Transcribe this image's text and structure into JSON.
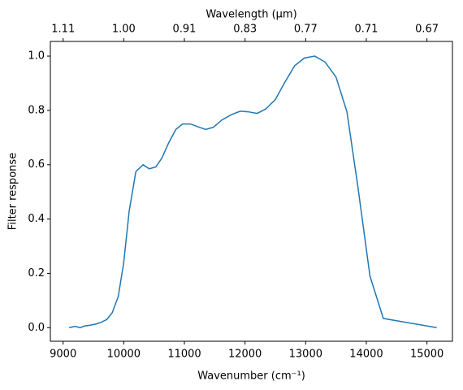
{
  "chart_data": {
    "type": "line",
    "x_label": "Wavenumber (cm⁻¹)",
    "y_label": "Filter response",
    "x2_label": "Wavelength (μm)",
    "x": [
      9100,
      9200,
      9280,
      9350,
      9450,
      9550,
      9630,
      9720,
      9810,
      9910,
      10000,
      10090,
      10200,
      10320,
      10420,
      10530,
      10630,
      10740,
      10860,
      10970,
      11100,
      11220,
      11350,
      11480,
      11620,
      11780,
      11920,
      12050,
      12200,
      12340,
      12500,
      12660,
      12820,
      12980,
      13150,
      13320,
      13500,
      13680,
      13860,
      14060,
      14280,
      15160
    ],
    "series": [
      {
        "color": "#1f77b4",
        "values": [
          0.0,
          0.005,
          0.0,
          0.006,
          0.009,
          0.014,
          0.02,
          0.03,
          0.055,
          0.115,
          0.24,
          0.43,
          0.575,
          0.6,
          0.585,
          0.592,
          0.625,
          0.68,
          0.73,
          0.75,
          0.75,
          0.74,
          0.73,
          0.738,
          0.765,
          0.785,
          0.797,
          0.795,
          0.789,
          0.805,
          0.84,
          0.905,
          0.965,
          0.993,
          1.0,
          0.978,
          0.923,
          0.795,
          0.52,
          0.19,
          0.034,
          0.0
        ]
      }
    ],
    "xlim": [
      8790,
      15420
    ],
    "ylim": [
      -0.05,
      1.054
    ],
    "xticks": [
      9000,
      10000,
      11000,
      12000,
      13000,
      14000,
      15000
    ],
    "yticks": [
      {
        "value": 0.0,
        "label": "0.0"
      },
      {
        "value": 0.2,
        "label": "0.2"
      },
      {
        "value": 0.4,
        "label": "0.4"
      },
      {
        "value": 0.6,
        "label": "0.6"
      },
      {
        "value": 0.8,
        "label": "0.8"
      },
      {
        "value": 1.0,
        "label": "1.0"
      }
    ],
    "x2ticks": [
      {
        "value": 1.111,
        "label": "1.11"
      },
      {
        "value": 1.0,
        "label": "1.00"
      },
      {
        "value": 0.9091,
        "label": "0.91"
      },
      {
        "value": 0.8333,
        "label": "0.83"
      },
      {
        "value": 0.7692,
        "label": "0.77"
      },
      {
        "value": 0.7143,
        "label": "0.71"
      },
      {
        "value": 0.6667,
        "label": "0.67"
      }
    ]
  }
}
